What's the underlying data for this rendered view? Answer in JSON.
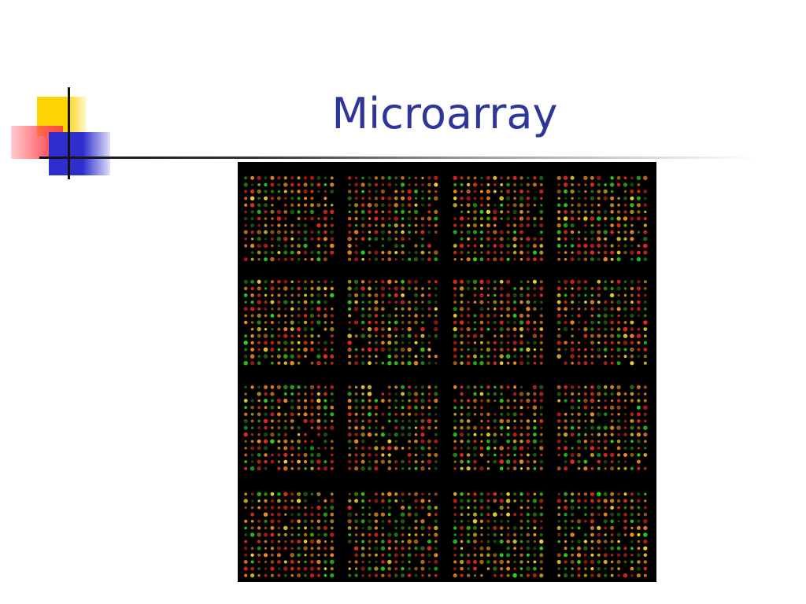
{
  "slide": {
    "title": "Microarray"
  },
  "colors": {
    "title": "#2f3699",
    "background": "#ffffff",
    "array_background": "#000000",
    "spot_red": "#e8281e",
    "spot_orange": "#f08a1c",
    "spot_yellow": "#f2d22a",
    "spot_green": "#2fd21a",
    "spot_dark_green": "#2a6a12"
  },
  "image": {
    "subject": "microarray-scan",
    "grid_rows": 4,
    "grid_cols": 4
  }
}
